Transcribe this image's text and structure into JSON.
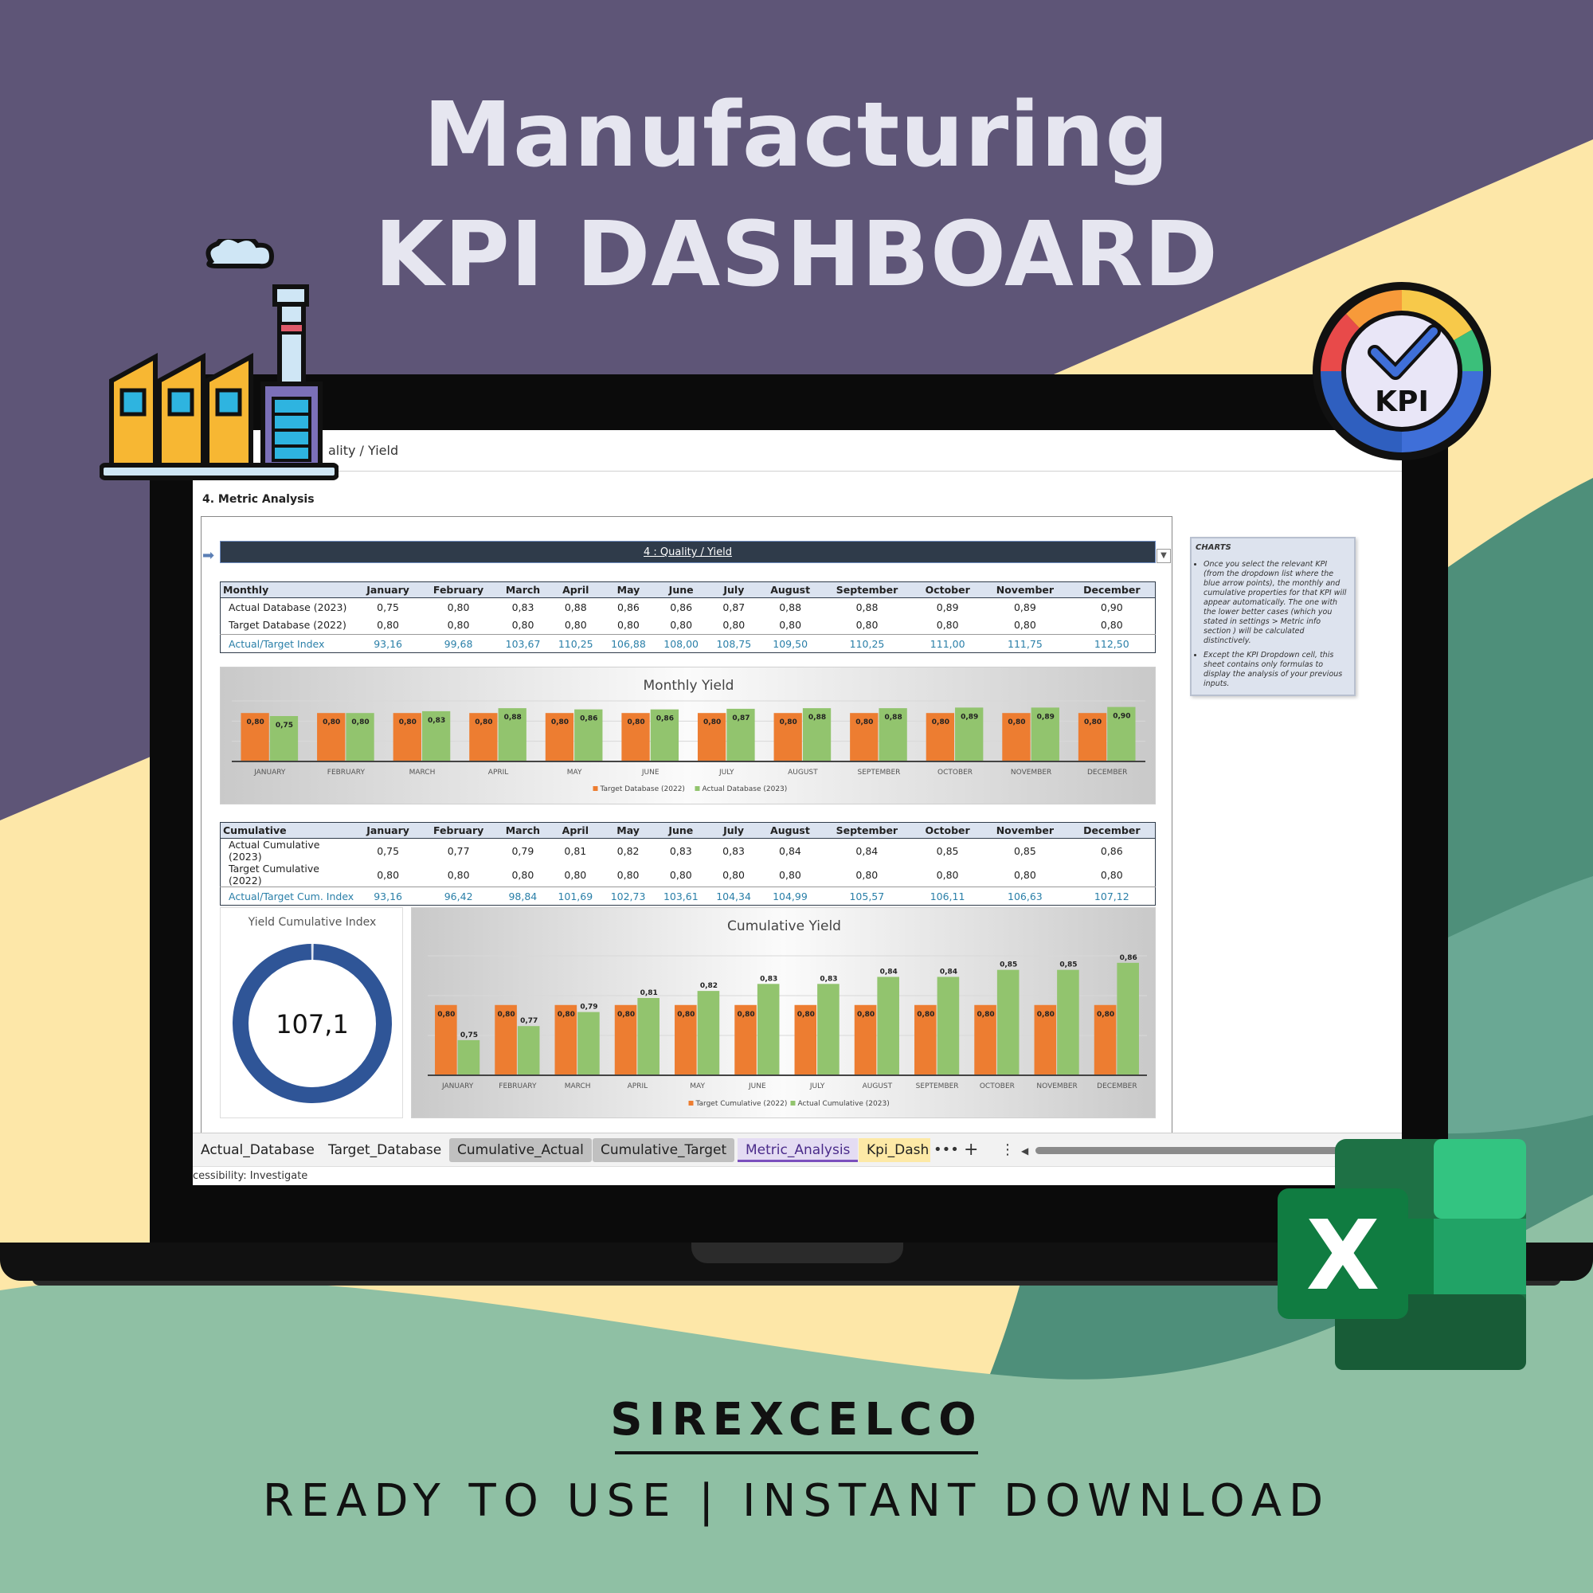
{
  "hero": {
    "line1": "Manufacturing",
    "line2": "KPI DASHBOARD"
  },
  "colors": {
    "purple": "#5e5577",
    "cream": "#fde7a8",
    "teal": "#8fc0a4",
    "orange": "#ed7d31",
    "green": "#92c46e",
    "donut": "#2f5597"
  },
  "excel": {
    "formula_text": "ality / Yield",
    "section_title": "4. Metric Analysis",
    "kpi_selector": "4 : Quality / Yield",
    "months": [
      "January",
      "February",
      "March",
      "April",
      "May",
      "June",
      "July",
      "August",
      "September",
      "October",
      "November",
      "December"
    ],
    "monthly_table": {
      "header": "Monthly",
      "rows": [
        {
          "label": "Actual Database (2023)",
          "values": [
            "0,75",
            "0,80",
            "0,83",
            "0,88",
            "0,86",
            "0,86",
            "0,87",
            "0,88",
            "0,88",
            "0,89",
            "0,89",
            "0,90"
          ]
        },
        {
          "label": "Target Database (2022)",
          "values": [
            "0,80",
            "0,80",
            "0,80",
            "0,80",
            "0,80",
            "0,80",
            "0,80",
            "0,80",
            "0,80",
            "0,80",
            "0,80",
            "0,80"
          ]
        },
        {
          "label": "Actual/Target Index",
          "values": [
            "93,16",
            "99,68",
            "103,67",
            "110,25",
            "106,88",
            "108,00",
            "108,75",
            "109,50",
            "110,25",
            "111,00",
            "111,75",
            "112,50"
          ]
        }
      ]
    },
    "cumulative_table": {
      "header": "Cumulative",
      "rows": [
        {
          "label": "Actual Cumulative (2023)",
          "values": [
            "0,75",
            "0,77",
            "0,79",
            "0,81",
            "0,82",
            "0,83",
            "0,83",
            "0,84",
            "0,84",
            "0,85",
            "0,85",
            "0,86"
          ]
        },
        {
          "label": "Target Cumulative (2022)",
          "values": [
            "0,80",
            "0,80",
            "0,80",
            "0,80",
            "0,80",
            "0,80",
            "0,80",
            "0,80",
            "0,80",
            "0,80",
            "0,80",
            "0,80"
          ]
        },
        {
          "label": "Actual/Target Cum. Index",
          "values": [
            "93,16",
            "96,42",
            "98,84",
            "101,69",
            "102,73",
            "103,61",
            "104,34",
            "104,99",
            "105,57",
            "106,11",
            "106,63",
            "107,12"
          ]
        }
      ]
    },
    "donut": {
      "title": "Yield Cumulative Index",
      "value_label": "107,1",
      "fill_fraction": 1.0
    },
    "notes": {
      "title": "CHARTS",
      "items": [
        "Once you select the relevant KPI (from the dropdown list where the blue arrow points), the monthly and cumulative properties for that KPI will appear automatically. The one with the lower better cases (which you stated in settings > Metric info section ) will be calculated distinctively.",
        "Except the KPI Dropdown cell, this sheet contains only formulas to display the analysis of your previous inputs."
      ]
    },
    "tabs": [
      "Actual_Database",
      "Target_Database",
      "Cumulative_Actual",
      "Cumulative_Target",
      "Metric_Analysis",
      "Kpi_Dash"
    ],
    "tab_controls": {
      "more": "•••",
      "add": "+",
      "menu": "⋮"
    },
    "status": "cessibility: Investigate"
  },
  "chart_data": [
    {
      "type": "bar",
      "title": "Monthly Yield",
      "categories": [
        "JANUARY",
        "FEBRUARY",
        "MARCH",
        "APRIL",
        "MAY",
        "JUNE",
        "JULY",
        "AUGUST",
        "SEPTEMBER",
        "OCTOBER",
        "NOVEMBER",
        "DECEMBER"
      ],
      "series": [
        {
          "name": "Target Database (2022)",
          "values": [
            0.8,
            0.8,
            0.8,
            0.8,
            0.8,
            0.8,
            0.8,
            0.8,
            0.8,
            0.8,
            0.8,
            0.8
          ],
          "labels": [
            "0,80",
            "0,80",
            "0,80",
            "0,80",
            "0,80",
            "0,80",
            "0,80",
            "0,80",
            "0,80",
            "0,80",
            "0,80",
            "0,80"
          ]
        },
        {
          "name": "Actual Database (2023)",
          "values": [
            0.75,
            0.8,
            0.83,
            0.88,
            0.86,
            0.86,
            0.87,
            0.88,
            0.88,
            0.89,
            0.89,
            0.9
          ],
          "labels": [
            "0,75",
            "0,80",
            "0,83",
            "0,88",
            "0,86",
            "0,86",
            "0,87",
            "0,88",
            "0,88",
            "0,89",
            "0,89",
            "0,90"
          ]
        }
      ],
      "legend": "bottom"
    },
    {
      "type": "bar",
      "title": "Cumulative Yield",
      "categories": [
        "JANUARY",
        "FEBRUARY",
        "MARCH",
        "APRIL",
        "MAY",
        "JUNE",
        "JULY",
        "AUGUST",
        "SEPTEMBER",
        "OCTOBER",
        "NOVEMBER",
        "DECEMBER"
      ],
      "series": [
        {
          "name": "Target Cumulative (2022)",
          "values": [
            0.8,
            0.8,
            0.8,
            0.8,
            0.8,
            0.8,
            0.8,
            0.8,
            0.8,
            0.8,
            0.8,
            0.8
          ],
          "labels": [
            "0,80",
            "0,80",
            "0,80",
            "0,80",
            "0,80",
            "0,80",
            "0,80",
            "0,80",
            "0,80",
            "0,80",
            "0,80",
            "0,80"
          ]
        },
        {
          "name": "Actual Cumulative (2023)",
          "values": [
            0.75,
            0.77,
            0.79,
            0.81,
            0.82,
            0.83,
            0.83,
            0.84,
            0.84,
            0.85,
            0.85,
            0.86
          ],
          "labels": [
            "0,75",
            "0,77",
            "0,79",
            "0,81",
            "0,82",
            "0,83",
            "0,83",
            "0,84",
            "0,84",
            "0,85",
            "0,85",
            "0,86"
          ]
        }
      ],
      "legend": "bottom"
    },
    {
      "type": "pie",
      "title": "Yield Cumulative Index",
      "values": [
        107.1
      ],
      "labels": [
        "107,1"
      ]
    }
  ],
  "footer": {
    "brand": "SIREXCELCO",
    "tagline": "READY TO USE | INSTANT DOWNLOAD"
  }
}
